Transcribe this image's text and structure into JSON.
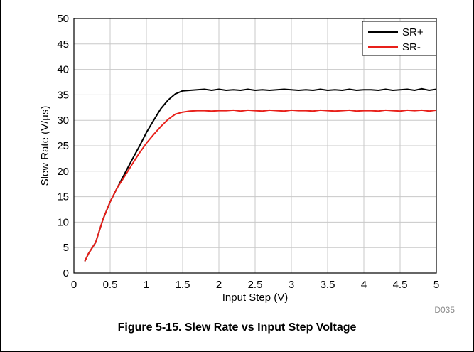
{
  "figure": {
    "caption": "Figure 5-15. Slew Rate vs Input Step Voltage",
    "code": "D035"
  },
  "chart_data": {
    "type": "line",
    "title": "",
    "xlabel": "Input Step (V)",
    "ylabel": "Slew Rate (V/µs)",
    "xlim": [
      0,
      5
    ],
    "ylim": [
      0,
      50
    ],
    "xticks": [
      "0",
      "0.5",
      "1",
      "1.5",
      "2",
      "2.5",
      "3",
      "3.5",
      "4",
      "4.5",
      "5"
    ],
    "yticks": [
      "0",
      "5",
      "10",
      "15",
      "20",
      "25",
      "30",
      "35",
      "40",
      "45",
      "50"
    ],
    "grid": true,
    "legend": "top-right",
    "series": [
      {
        "name": "SR+",
        "color": "#000000",
        "x": [
          0.15,
          0.2,
          0.3,
          0.4,
          0.5,
          0.6,
          0.7,
          0.8,
          0.9,
          1.0,
          1.1,
          1.2,
          1.3,
          1.4,
          1.5,
          1.6,
          1.7,
          1.8,
          1.9,
          2.0,
          2.1,
          2.2,
          2.3,
          2.4,
          2.5,
          2.6,
          2.7,
          2.8,
          2.9,
          3.0,
          3.1,
          3.2,
          3.3,
          3.4,
          3.5,
          3.6,
          3.7,
          3.8,
          3.9,
          4.0,
          4.1,
          4.2,
          4.3,
          4.4,
          4.5,
          4.6,
          4.7,
          4.8,
          4.9,
          5.0
        ],
        "values": [
          2.3,
          3.8,
          6.0,
          10.5,
          14.0,
          16.8,
          19.5,
          22.2,
          24.8,
          27.6,
          30.0,
          32.3,
          34.0,
          35.2,
          35.8,
          35.9,
          36.0,
          36.1,
          35.9,
          36.1,
          35.9,
          36.0,
          35.9,
          36.1,
          35.9,
          36.0,
          35.9,
          36.0,
          36.1,
          36.0,
          35.9,
          36.0,
          35.9,
          36.1,
          35.9,
          36.0,
          35.9,
          36.1,
          35.9,
          36.0,
          36.0,
          35.9,
          36.1,
          35.9,
          36.0,
          36.1,
          35.9,
          36.2,
          35.9,
          36.1
        ]
      },
      {
        "name": "SR-",
        "color": "#e8201a",
        "x": [
          0.15,
          0.2,
          0.3,
          0.4,
          0.5,
          0.6,
          0.7,
          0.8,
          0.9,
          1.0,
          1.1,
          1.2,
          1.3,
          1.4,
          1.5,
          1.6,
          1.7,
          1.8,
          1.9,
          2.0,
          2.1,
          2.2,
          2.3,
          2.4,
          2.5,
          2.6,
          2.7,
          2.8,
          2.9,
          3.0,
          3.1,
          3.2,
          3.3,
          3.4,
          3.5,
          3.6,
          3.7,
          3.8,
          3.9,
          4.0,
          4.1,
          4.2,
          4.3,
          4.4,
          4.5,
          4.6,
          4.7,
          4.8,
          4.9,
          5.0
        ],
        "values": [
          2.3,
          3.8,
          6.0,
          10.5,
          14.0,
          16.8,
          19.0,
          21.3,
          23.5,
          25.5,
          27.2,
          28.8,
          30.2,
          31.2,
          31.6,
          31.8,
          31.9,
          31.9,
          31.8,
          31.9,
          31.9,
          32.0,
          31.8,
          32.0,
          31.9,
          31.8,
          32.0,
          31.9,
          31.8,
          32.0,
          31.9,
          31.9,
          31.8,
          32.0,
          31.9,
          31.8,
          31.9,
          32.0,
          31.8,
          31.9,
          31.9,
          31.8,
          32.0,
          31.9,
          31.8,
          32.0,
          31.9,
          32.0,
          31.8,
          32.0
        ]
      }
    ]
  }
}
